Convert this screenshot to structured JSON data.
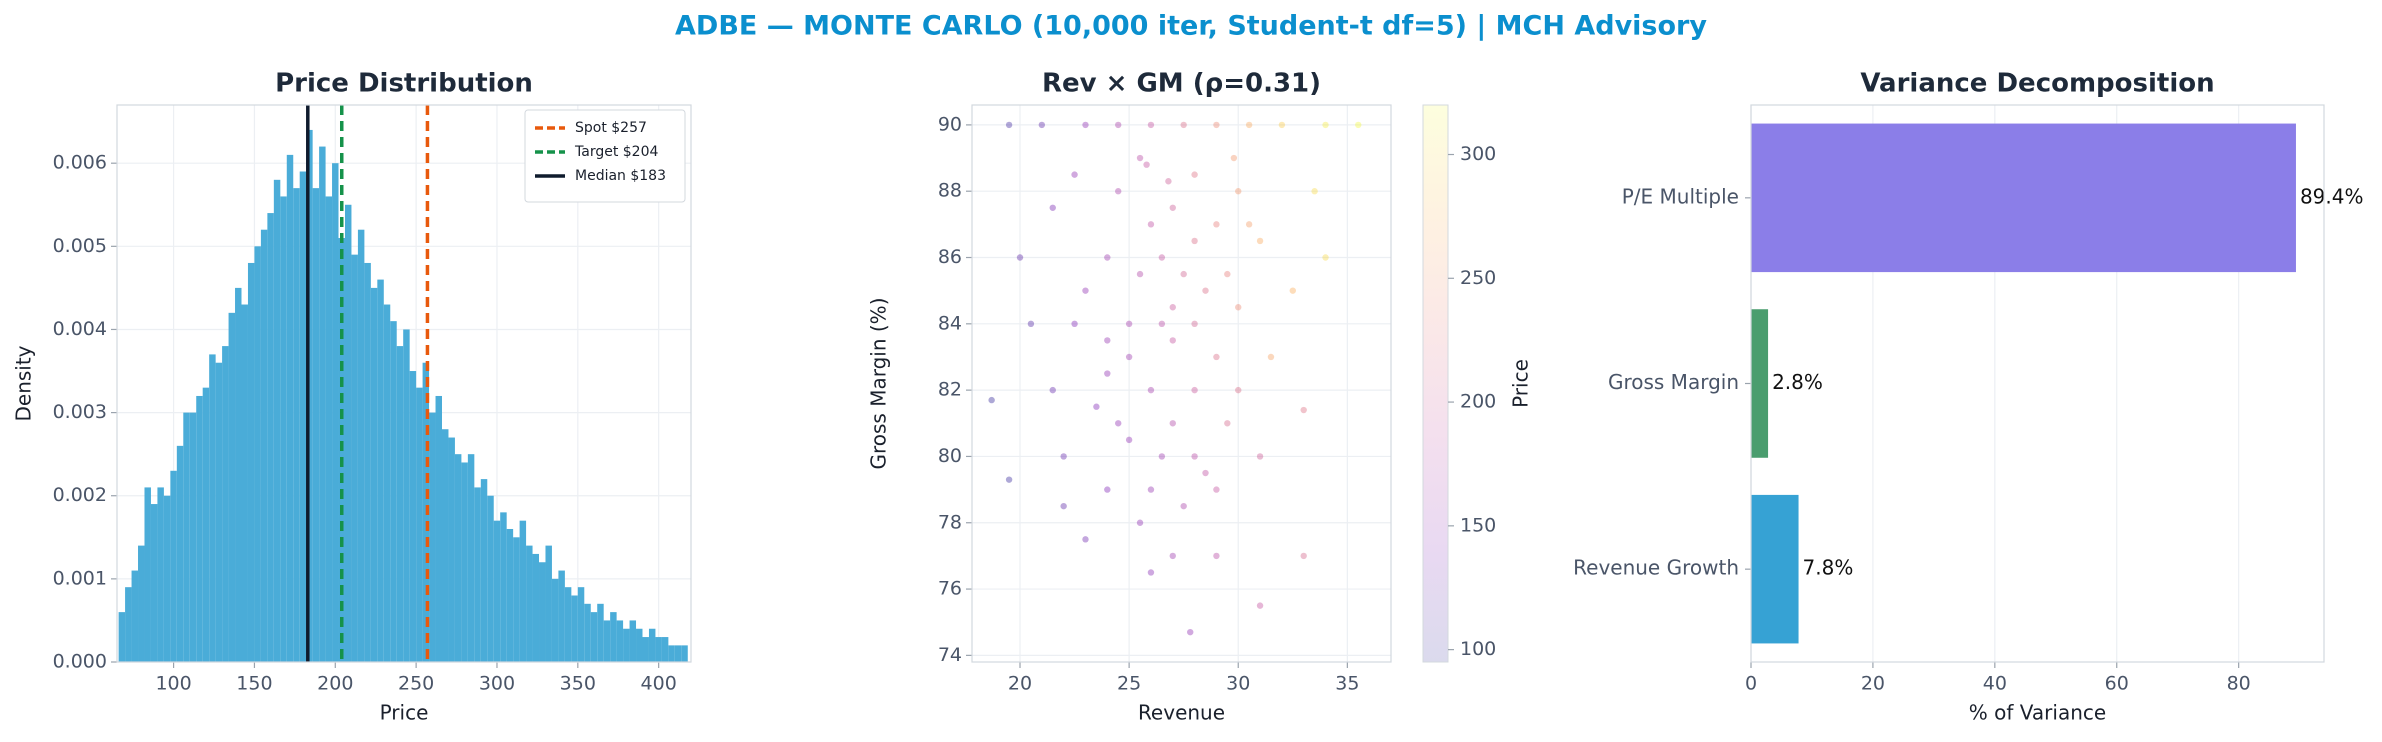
{
  "title": "ADBE — MONTE CARLO (10,000 iter, Student-t df=5) | MCH Advisory",
  "chart_data": [
    {
      "type": "histogram",
      "title": "Price Distribution",
      "xlabel": "Price",
      "ylabel": "Density",
      "color": "#4aacd8",
      "grid": true,
      "bins": [
        66,
        70,
        74,
        78,
        82,
        86,
        90,
        94,
        98,
        102,
        106,
        110,
        114,
        118,
        122,
        126,
        130,
        134,
        138,
        142,
        146,
        150,
        154,
        158,
        162,
        166,
        170,
        174,
        178,
        182,
        186,
        190,
        194,
        198,
        202,
        206,
        210,
        214,
        218,
        222,
        226,
        230,
        234,
        238,
        242,
        246,
        250,
        254,
        258,
        262,
        266,
        270,
        274,
        278,
        282,
        286,
        290,
        294,
        298,
        302,
        306,
        310,
        314,
        318,
        322,
        326,
        330,
        334,
        338,
        342,
        346,
        350,
        354,
        358,
        362,
        366,
        370,
        374,
        378,
        382,
        386,
        390,
        394,
        398,
        402,
        406,
        410,
        414,
        418
      ],
      "values": [
        0.0006,
        0.0009,
        0.0011,
        0.0014,
        0.0021,
        0.0019,
        0.0021,
        0.002,
        0.0023,
        0.0026,
        0.003,
        0.003,
        0.0032,
        0.0033,
        0.0037,
        0.0036,
        0.0038,
        0.0042,
        0.0045,
        0.0043,
        0.0048,
        0.005,
        0.0052,
        0.0054,
        0.0058,
        0.0056,
        0.0061,
        0.0057,
        0.0059,
        0.0064,
        0.0057,
        0.0062,
        0.0056,
        0.006,
        0.0051,
        0.0055,
        0.0049,
        0.0052,
        0.0048,
        0.0045,
        0.0046,
        0.0043,
        0.0041,
        0.0038,
        0.004,
        0.0035,
        0.0033,
        0.0036,
        0.003,
        0.0032,
        0.0028,
        0.0027,
        0.0025,
        0.0024,
        0.0025,
        0.0021,
        0.0022,
        0.002,
        0.0017,
        0.0018,
        0.0016,
        0.0015,
        0.0017,
        0.0014,
        0.0013,
        0.0012,
        0.0014,
        0.001,
        0.0011,
        0.0009,
        0.0008,
        0.0009,
        0.0007,
        0.0006,
        0.0007,
        0.0005,
        0.0006,
        0.0005,
        0.0004,
        0.0005,
        0.0004,
        0.0003,
        0.0004,
        0.0003,
        0.0003,
        0.0002,
        0.0002,
        0.0002
      ],
      "xlim": [
        65,
        420
      ],
      "xticks": [
        100,
        150,
        200,
        250,
        300,
        350,
        400
      ],
      "ylim": [
        0,
        0.0067
      ],
      "yticks": [
        {
          "value": 0,
          "label": "0.000"
        },
        {
          "value": 0.001,
          "label": "0.001"
        },
        {
          "value": 0.002,
          "label": "0.002"
        },
        {
          "value": 0.003,
          "label": "0.003"
        },
        {
          "value": 0.004,
          "label": "0.004"
        },
        {
          "value": 0.005,
          "label": "0.005"
        },
        {
          "value": 0.006,
          "label": "0.006"
        }
      ],
      "vlines": [
        {
          "name": "Spot $257",
          "value": 257,
          "color": "#e8590c",
          "style": "dashed"
        },
        {
          "name": "Target $204",
          "value": 204,
          "color": "#15924a",
          "style": "dashed"
        },
        {
          "name": "Median $183",
          "value": 183,
          "color": "#0f1b2d",
          "style": "solid"
        }
      ],
      "legend": "upper right"
    },
    {
      "type": "scatter",
      "title": "Rev × GM (ρ=0.31)",
      "xlabel": "Revenue",
      "ylabel": "Gross Margin (%)",
      "grid": true,
      "x": [
        19.5,
        21,
        23,
        24.5,
        26,
        27.5,
        29,
        30.5,
        32,
        34,
        35.5,
        25.5,
        28,
        30,
        27,
        26,
        29,
        31,
        24,
        25.5,
        27.5,
        28.5,
        23,
        30,
        26.5,
        22.5,
        27,
        29,
        25,
        31.5,
        24,
        26,
        28,
        21.5,
        23.5,
        27,
        29.5,
        25,
        22,
        26.5,
        28.5,
        24,
        27.5,
        25.5,
        23,
        29,
        26,
        27.8,
        31,
        33,
        19.5,
        18.7,
        20.5,
        33,
        32.5,
        34,
        33.5,
        20,
        21.5,
        22.5,
        24.5,
        26.5,
        28,
        30.5,
        27,
        25,
        28,
        29.5,
        24.5,
        30,
        22,
        28,
        26,
        29,
        27,
        31,
        24,
        26.8,
        25.8,
        29.8
      ],
      "values": [
        90,
        90,
        90,
        90,
        90,
        90,
        90,
        90,
        90,
        90,
        90,
        89,
        88.5,
        88,
        87.5,
        87,
        87,
        86.5,
        86,
        85.5,
        85.5,
        85,
        85,
        84.5,
        84,
        84,
        83.5,
        83,
        83,
        83,
        82.5,
        82,
        82,
        82,
        81.5,
        81,
        81,
        80.5,
        80,
        80,
        79.5,
        79,
        78.5,
        78,
        77.5,
        77,
        76.5,
        74.7,
        75.5,
        77,
        79.3,
        81.7,
        84,
        81.4,
        85,
        86,
        88,
        86,
        87.5,
        88.5,
        88,
        86,
        86.5,
        87,
        84.5,
        84,
        84,
        85.5,
        81,
        82,
        78.5,
        80,
        79,
        79,
        77,
        80,
        83.5,
        88.3,
        88.8,
        89
      ],
      "color_values": [
        105,
        120,
        150,
        170,
        190,
        215,
        240,
        265,
        290,
        310,
        318,
        180,
        220,
        250,
        200,
        185,
        230,
        265,
        160,
        175,
        205,
        215,
        150,
        240,
        180,
        140,
        190,
        215,
        160,
        260,
        150,
        165,
        195,
        125,
        140,
        175,
        210,
        150,
        125,
        160,
        185,
        140,
        170,
        150,
        130,
        180,
        145,
        150,
        190,
        210,
        100,
        98,
        115,
        220,
        270,
        300,
        300,
        120,
        135,
        150,
        170,
        190,
        215,
        255,
        195,
        165,
        205,
        230,
        150,
        215,
        120,
        180,
        155,
        190,
        160,
        200,
        155,
        200,
        190,
        250
      ],
      "xlim": [
        17.8,
        37
      ],
      "xticks": [
        20,
        25,
        30,
        35
      ],
      "ylim": [
        73.8,
        90.6
      ],
      "yticks": [
        74,
        76,
        78,
        80,
        82,
        84,
        86,
        88,
        90
      ],
      "colorbar": {
        "label": "Price",
        "lim": [
          95,
          320
        ],
        "ticks": [
          100,
          150,
          200,
          250,
          300
        ],
        "colormap": [
          "#0d0887",
          "#6a00a8",
          "#b12a90",
          "#e16462",
          "#fca636",
          "#f0f921"
        ]
      }
    },
    {
      "type": "barh",
      "title": "Variance Decomposition",
      "xlabel": "% of Variance",
      "grid": true,
      "categories": [
        "P/E Multiple",
        "Gross Margin",
        "Revenue Growth"
      ],
      "values": [
        89.4,
        2.8,
        7.8
      ],
      "value_labels": [
        "89.4%",
        "2.8%",
        "7.8%"
      ],
      "colors": [
        "#8b7ee8",
        "#4a9d6e",
        "#36a2d4"
      ],
      "xlim": [
        0,
        94
      ],
      "xticks": [
        0,
        20,
        40,
        60,
        80
      ]
    }
  ]
}
